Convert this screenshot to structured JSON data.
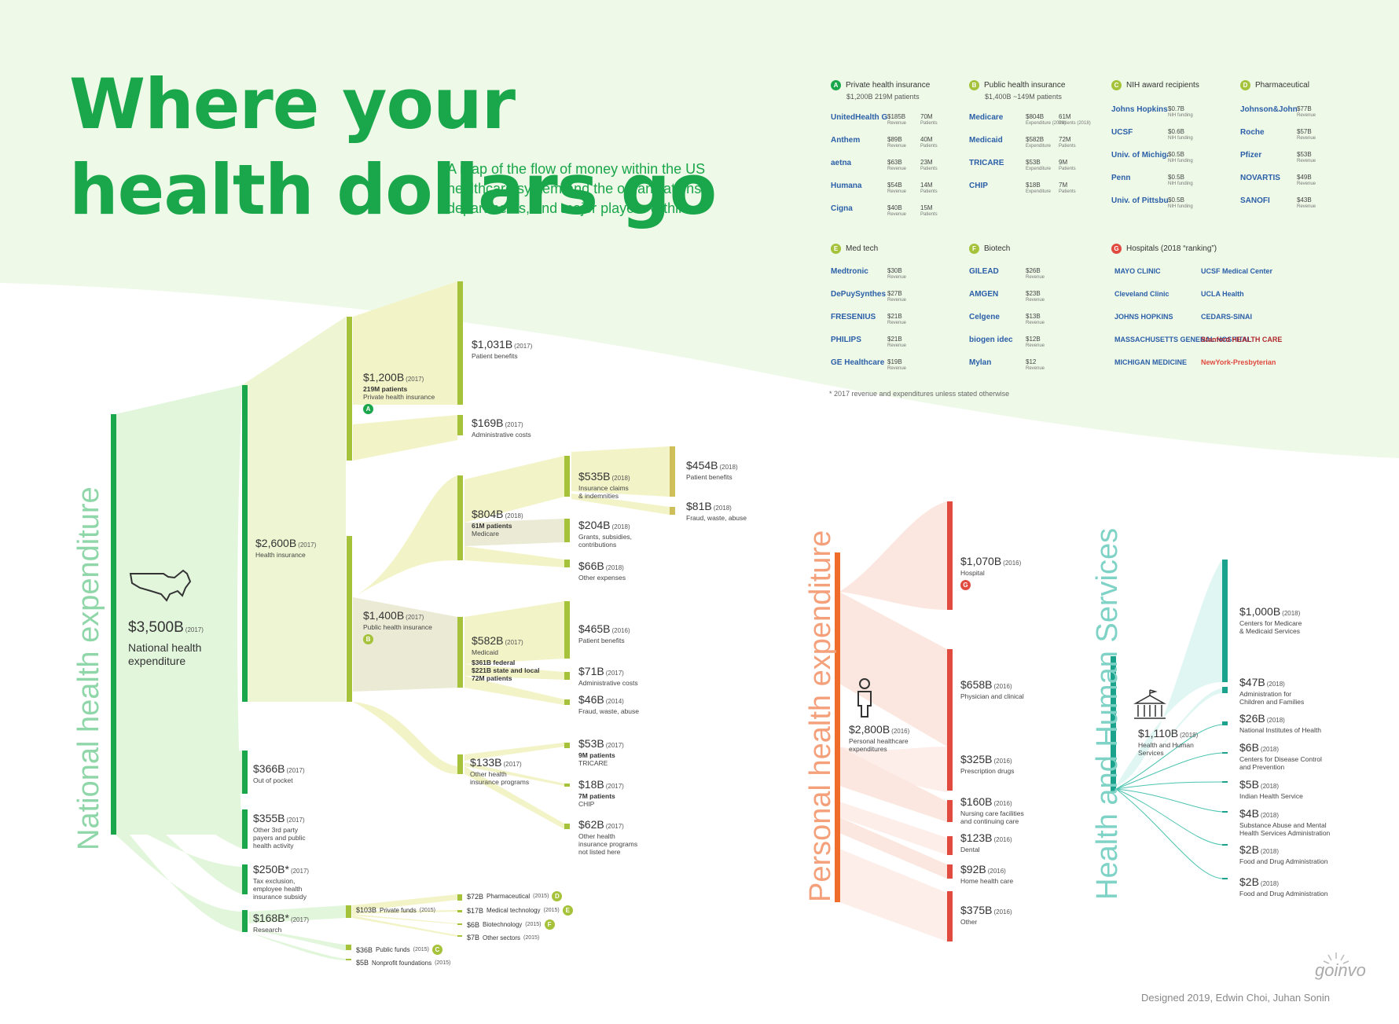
{
  "title": "Where your health dollars go",
  "subtitle": "A map of the flow of money within the US healthcare system and the organizations, departments, and major players within.",
  "footnote": "* 2017 revenue and expenditures unless stated otherwise",
  "credit": "Designed 2019, Edwin Choi, Juhan Sonin",
  "brand": "goinvo",
  "colors": {
    "green": "#1aa64a",
    "olive": "#a5c23a",
    "orange": "#f06c2a",
    "red": "#e04a3f",
    "teal": "#1aa28c"
  },
  "legend": {
    "private": {
      "badge": "A",
      "title": "Private health insurance",
      "sub": "$1,200B    219M patients",
      "rows": [
        [
          "UnitedHealth Group",
          "$185B",
          "Revenue",
          "70M",
          "Patients"
        ],
        [
          "Anthem",
          "$89B",
          "Revenue",
          "40M",
          "Patients"
        ],
        [
          "aetna",
          "$63B",
          "Revenue",
          "23M",
          "Patients"
        ],
        [
          "Humana",
          "$54B",
          "Revenue",
          "14M",
          "Patients"
        ],
        [
          "Cigna",
          "$40B",
          "Revenue",
          "15M",
          "Patients"
        ]
      ]
    },
    "public": {
      "badge": "B",
      "title": "Public health insurance",
      "sub": "$1,400B    ~149M patients",
      "rows": [
        [
          "Medicare",
          "$804B",
          "Expenditure (2018)",
          "61M",
          "Patients (2018)"
        ],
        [
          "Medicaid",
          "$582B",
          "Expenditure",
          "72M",
          "Patients"
        ],
        [
          "TRICARE",
          "$53B",
          "Expenditure",
          "9M",
          "Patients"
        ],
        [
          "CHIP",
          "$18B",
          "Expenditure",
          "7M",
          "Patients"
        ]
      ]
    },
    "nih": {
      "badge": "C",
      "title": "NIH award recipients",
      "rows": [
        [
          "Johns Hopkins",
          "$0.7B",
          "NIH funding"
        ],
        [
          "UCSF",
          "$0.6B",
          "NIH funding"
        ],
        [
          "Univ. of Michigan",
          "$0.5B",
          "NIH funding"
        ],
        [
          "Penn",
          "$0.5B",
          "NIH funding"
        ],
        [
          "Univ. of Pittsburgh",
          "$0.5B",
          "NIH funding"
        ]
      ]
    },
    "pharma": {
      "badge": "D",
      "title": "Pharmaceutical",
      "rows": [
        [
          "Johnson&Johnson",
          "$77B",
          "Revenue"
        ],
        [
          "Roche",
          "$57B",
          "Revenue"
        ],
        [
          "Pfizer",
          "$53B",
          "Revenue"
        ],
        [
          "NOVARTIS",
          "$49B",
          "Revenue"
        ],
        [
          "SANOFI",
          "$43B",
          "Revenue"
        ]
      ]
    },
    "medtech": {
      "badge": "E",
      "title": "Med tech",
      "rows": [
        [
          "Medtronic",
          "$30B",
          "Revenue"
        ],
        [
          "DePuySynthes",
          "$27B",
          "Revenue"
        ],
        [
          "FRESENIUS",
          "$21B",
          "Revenue"
        ],
        [
          "PHILIPS",
          "$21B",
          "Revenue"
        ],
        [
          "GE Healthcare",
          "$19B",
          "Revenue"
        ]
      ]
    },
    "biotech": {
      "badge": "F",
      "title": "Biotech",
      "rows": [
        [
          "GILEAD",
          "$26B",
          "Revenue"
        ],
        [
          "AMGEN",
          "$23B",
          "Revenue"
        ],
        [
          "Celgene",
          "$13B",
          "Revenue"
        ],
        [
          "biogen idec",
          "$12B",
          "Revenue"
        ],
        [
          "Mylan",
          "$12",
          "Revenue"
        ]
      ]
    },
    "hospitals": {
      "badge": "G",
      "title": "Hospitals  (2018 “ranking”)",
      "items": [
        "MAYO CLINIC",
        "UCSF Medical Center",
        "Cleveland Clinic",
        "UCLA Health",
        "JOHNS HOPKINS",
        "CEDARS-SINAI",
        "MASSACHUSETTS GENERAL HOSPITAL",
        "Stanford HEALTH CARE",
        "MICHIGAN MEDICINE",
        "NewYork-Presbyterian"
      ]
    }
  },
  "national": {
    "vertical": "National health expenditure",
    "root": {
      "amt": "$3,500B",
      "yr": "(2017)",
      "desc": "National health expenditure"
    },
    "health_ins": {
      "amt": "$2,600B",
      "yr": "(2017)",
      "desc": "Health insurance"
    },
    "private": {
      "amt": "$1,200B",
      "yr": "(2017)",
      "d1": "219M patients",
      "d2": "Private health insurance",
      "badge": "A"
    },
    "patient_ben": {
      "amt": "$1,031B",
      "yr": "(2017)",
      "desc": "Patient benefits"
    },
    "admin": {
      "amt": "$169B",
      "yr": "(2017)",
      "desc": "Administrative costs"
    },
    "public": {
      "amt": "$1,400B",
      "yr": "(2017)",
      "desc": "Public health insurance",
      "badge": "B"
    },
    "medicare": {
      "amt": "$804B",
      "yr": "(2018)",
      "d1": "61M patients",
      "d2": "Medicare"
    },
    "claims": {
      "amt": "$535B",
      "yr": "(2018)",
      "d1": "Insurance claims",
      "d2": "& indemnities"
    },
    "mc_pb": {
      "amt": "$454B",
      "yr": "(2018)",
      "desc": "Patient benefits"
    },
    "mc_fraud": {
      "amt": "$81B",
      "yr": "(2018)",
      "desc": "Fraud, waste, abuse"
    },
    "grants": {
      "amt": "$204B",
      "yr": "(2018)",
      "d1": "Grants, subsidies,",
      "d2": "contributions"
    },
    "other_exp": {
      "amt": "$66B",
      "yr": "(2018)",
      "desc": "Other expenses"
    },
    "medicaid": {
      "amt": "$582B",
      "yr": "(2017)",
      "d1": "Medicaid",
      "d2": "$361B federal",
      "d3": "$221B state and local",
      "d4": "72M patients"
    },
    "md_pb": {
      "amt": "$465B",
      "yr": "(2016)",
      "desc": "Patient benefits"
    },
    "md_admin": {
      "amt": "$71B",
      "yr": "(2017)",
      "desc": "Administrative costs"
    },
    "md_fraud": {
      "amt": "$46B",
      "yr": "(2014)",
      "desc": "Fraud, waste, abuse"
    },
    "other_ins": {
      "amt": "$133B",
      "yr": "(2017)",
      "d1": "Other health",
      "d2": "insurance programs"
    },
    "tricare": {
      "amt": "$53B",
      "yr": "(2017)",
      "d1": "9M patients",
      "d2": "TRICARE"
    },
    "chip": {
      "amt": "$18B",
      "yr": "(2017)",
      "d1": "7M patients",
      "d2": "CHIP"
    },
    "other_prog": {
      "amt": "$62B",
      "yr": "(2017)",
      "d1": "Other health",
      "d2": "insurance programs",
      "d3": "not listed here"
    },
    "oop": {
      "amt": "$366B",
      "yr": "(2017)",
      "desc": "Out of pocket"
    },
    "third": {
      "amt": "$355B",
      "yr": "(2017)",
      "d1": "Other 3rd party",
      "d2": "payers and public",
      "d3": "health activity"
    },
    "tax": {
      "amt": "$250B*",
      "yr": "(2017)",
      "d1": "Tax exclusion,",
      "d2": "employee health",
      "d3": "insurance subsidy"
    },
    "research": {
      "amt": "$168B*",
      "yr": "(2017)",
      "desc": "Research"
    },
    "private_funds": {
      "amt": "$103B",
      "label": "Private funds",
      "yr": "(2015)"
    },
    "pharma": {
      "amt": "$72B",
      "label": "Pharmaceutical",
      "yr": "(2015)",
      "badge": "D"
    },
    "medtech": {
      "amt": "$17B",
      "label": "Medical technology",
      "yr": "(2015)",
      "badge": "E"
    },
    "biotech": {
      "amt": "$6B",
      "label": "Biotechnology",
      "yr": "(2015)",
      "badge": "F"
    },
    "other_sec": {
      "amt": "$7B",
      "label": "Other sectors",
      "yr": "(2015)"
    },
    "public_funds": {
      "amt": "$36B",
      "label": "Public funds",
      "yr": "(2015)",
      "badge": "C"
    },
    "nonprofit": {
      "amt": "$5B",
      "label": "Nonprofit foundations",
      "yr": "(2015)"
    }
  },
  "personal": {
    "vertical": "Personal health expenditure",
    "root": {
      "amt": "$2,800B",
      "yr": "(2016)",
      "d1": "Personal healthcare",
      "d2": "expenditures"
    },
    "items": [
      {
        "amt": "$1,070B",
        "yr": "(2016)",
        "d1": "Hospital",
        "d2": "",
        "badge": "G"
      },
      {
        "amt": "$658B",
        "yr": "(2016)",
        "d1": "Physician and clinical",
        "d2": ""
      },
      {
        "amt": "$325B",
        "yr": "(2016)",
        "d1": "Prescription drugs",
        "d2": ""
      },
      {
        "amt": "$160B",
        "yr": "(2016)",
        "d1": "Nursing care facilities",
        "d2": "and continuing care"
      },
      {
        "amt": "$123B",
        "yr": "(2016)",
        "d1": "Dental",
        "d2": ""
      },
      {
        "amt": "$92B",
        "yr": "(2016)",
        "d1": "Home health care",
        "d2": ""
      },
      {
        "amt": "$375B",
        "yr": "(2016)",
        "d1": "Other",
        "d2": ""
      }
    ]
  },
  "hhs": {
    "vertical": "Health and Human Services",
    "root": {
      "amt": "$1,110B",
      "yr": "(2018)",
      "d1": "Health and Human",
      "d2": "Services"
    },
    "items": [
      {
        "amt": "$1,000B",
        "yr": "(2018)",
        "d1": "Centers for Medicare",
        "d2": "& Medicaid Services"
      },
      {
        "amt": "$47B",
        "yr": "(2018)",
        "d1": "Administration for",
        "d2": "Children and Families"
      },
      {
        "amt": "$26B",
        "yr": "(2018)",
        "d1": "National Institutes of Health",
        "d2": ""
      },
      {
        "amt": "$6B",
        "yr": "(2018)",
        "d1": "Centers for Disease Control",
        "d2": "and Prevention"
      },
      {
        "amt": "$5B",
        "yr": "(2018)",
        "d1": "Indian Health Service",
        "d2": ""
      },
      {
        "amt": "$4B",
        "yr": "(2018)",
        "d1": "Substance Abuse and Mental",
        "d2": "Health Services Administration"
      },
      {
        "amt": "$2B",
        "yr": "(2018)",
        "d1": "Food and Drug Administration",
        "d2": ""
      },
      {
        "amt": "$2B",
        "yr": "(2018)",
        "d1": "Food and Drug Administration",
        "d2": ""
      }
    ]
  }
}
